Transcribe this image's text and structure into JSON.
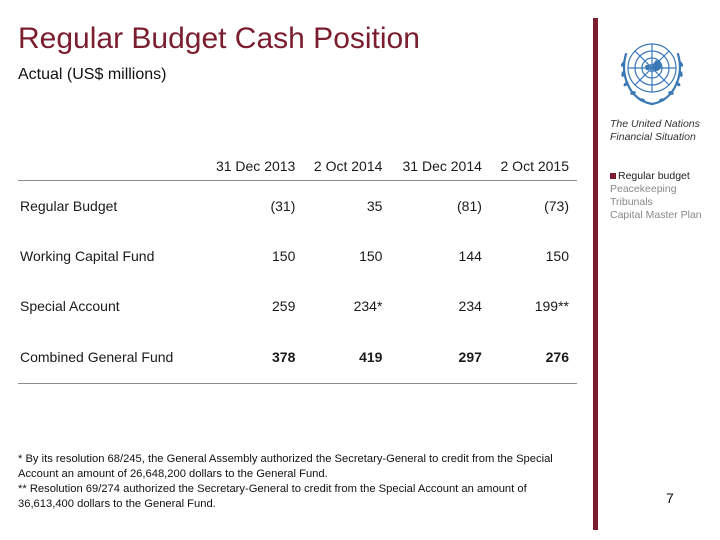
{
  "title": "Regular Budget Cash Position",
  "subtitle": "Actual (US$ millions)",
  "table": {
    "columns": [
      "31 Dec 2013",
      "2 Oct 2014",
      "31 Dec 2014",
      "2 Oct 2015"
    ],
    "rows": [
      {
        "label": "Regular Budget",
        "values": [
          "(31)",
          "35",
          "(81)",
          "(73)"
        ]
      },
      {
        "label": "Working Capital Fund",
        "values": [
          "150",
          "150",
          "144",
          "150"
        ]
      },
      {
        "label": "Special Account",
        "values": [
          "259",
          "234*",
          "234",
          "199**"
        ]
      },
      {
        "label": "Combined General Fund",
        "values": [
          "378",
          "419",
          "297",
          "276"
        ]
      }
    ]
  },
  "footnotes": [
    "* By its resolution 68/245, the General Assembly authorized the Secretary-General to credit from the Special Account an amount of 26,648,200 dollars to the General Fund.",
    "** Resolution 69/274 authorized the Secretary-General to credit from the Special Account an amount of 36,613,400 dollars to the General Fund."
  ],
  "sidebar": {
    "org_name": "The United Nations Financial Situation",
    "nav": [
      {
        "label": "Regular budget",
        "active": true
      },
      {
        "label": "Peacekeeping",
        "active": false
      },
      {
        "label": "Tribunals",
        "active": false
      },
      {
        "label": "Capital Master Plan",
        "active": false
      }
    ],
    "logo_icon": "un-emblem-icon",
    "accent_color": "#7a1d2e"
  },
  "page_number": "7"
}
